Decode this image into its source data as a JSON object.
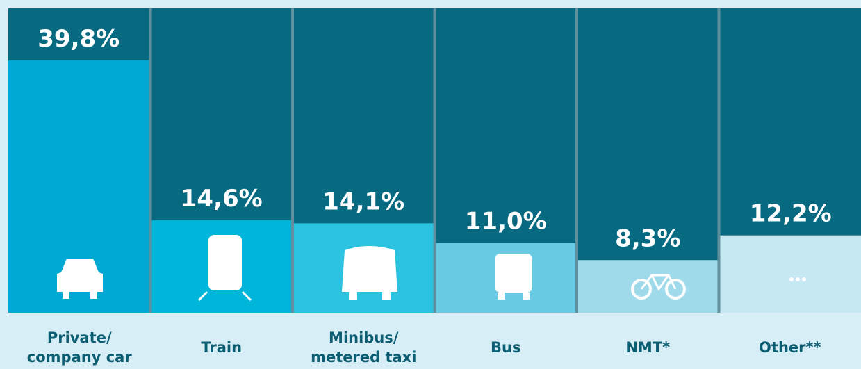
{
  "chart_data": {
    "type": "bar",
    "categories": [
      "Private/\ncompany car",
      "Train",
      "Minibus/\nmetered taxi",
      "Bus",
      "NMT*",
      "Other**"
    ],
    "values": [
      39.8,
      14.6,
      14.1,
      11.0,
      8.3,
      12.2
    ],
    "value_labels": [
      "39,8%",
      "14,6%",
      "14,1%",
      "11,0%",
      "8,3%",
      "12,2%"
    ],
    "colors": [
      "#00a9d3",
      "#00b5da",
      "#2cc3e1",
      "#68cbe3",
      "#9fdaea",
      "#c5e8f2"
    ],
    "ylim": [
      0,
      48
    ]
  }
}
